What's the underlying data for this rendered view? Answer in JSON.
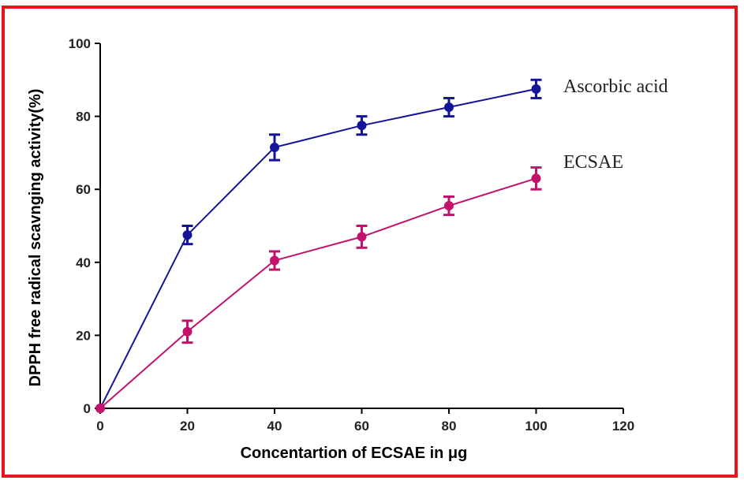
{
  "chart_data": {
    "type": "line",
    "xlabel": "Concentartion of ECSAE in μg",
    "ylabel": "DPPH free radical scavnging activity(%)",
    "xlim": [
      0,
      120
    ],
    "ylim": [
      0,
      100
    ],
    "xticks": [
      "0",
      "20",
      "40",
      "60",
      "80",
      "100",
      "120"
    ],
    "yticks": [
      "0",
      "20",
      "40",
      "60",
      "80",
      "100"
    ],
    "grid": false,
    "legend": "right, beside line ends",
    "series": [
      {
        "name": "Ascorbic acid",
        "color": "#14149a",
        "x": [
          0,
          20,
          40,
          60,
          80,
          100
        ],
        "y": [
          0,
          47.5,
          71.5,
          77.5,
          82.5,
          87.5
        ],
        "err": [
          0,
          2.5,
          3.5,
          2.5,
          2.5,
          2.5
        ]
      },
      {
        "name": "ECSAE",
        "color": "#c2126b",
        "x": [
          0,
          20,
          40,
          60,
          80,
          100
        ],
        "y": [
          0,
          21,
          40.5,
          47,
          55.5,
          63
        ],
        "err": [
          0,
          3,
          2.5,
          3,
          2.5,
          3
        ]
      }
    ]
  }
}
